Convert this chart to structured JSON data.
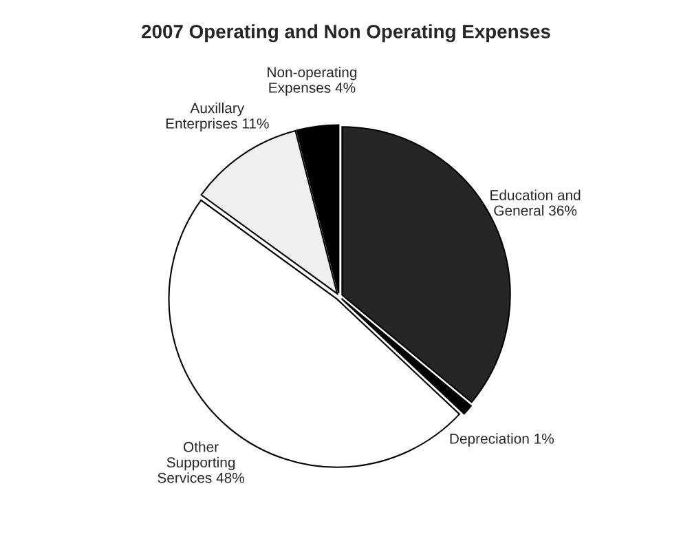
{
  "chart_data": {
    "type": "pie",
    "title": "2007 Operating and Non Operating Expenses",
    "categories": [
      "Education and\nGeneral",
      "Depreciation",
      "Other\nSupporting\nServices",
      "Auxillary\nEnterprises",
      "Non-operating\nExpenses"
    ],
    "values": [
      36,
      1,
      48,
      11,
      4
    ],
    "value_labels": [
      "36%",
      "1%",
      "48%",
      "11%",
      "4%"
    ],
    "colors": [
      "#262626",
      "#000000",
      "#ffffff",
      "#efefef",
      "#000000"
    ]
  }
}
